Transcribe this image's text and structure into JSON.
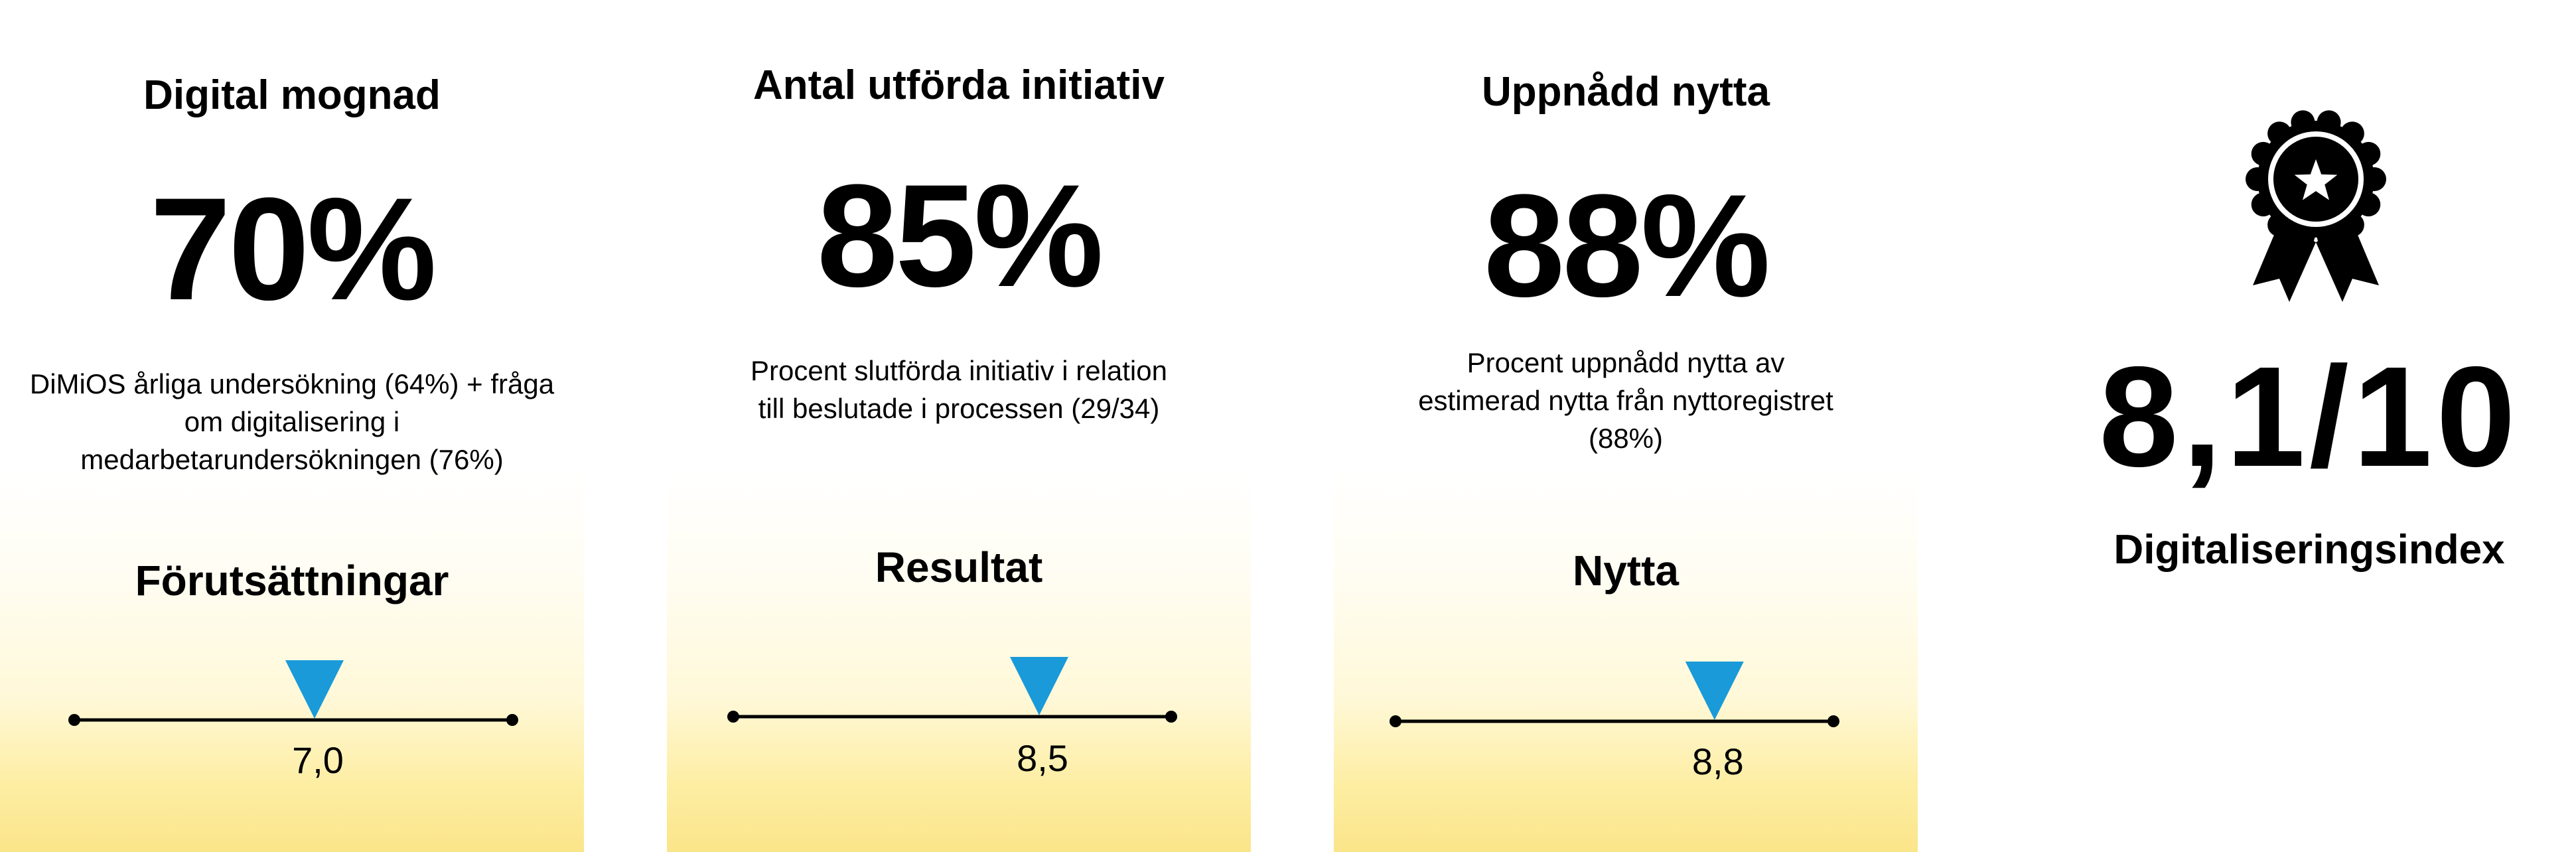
{
  "cards": [
    {
      "title": "Digital mognad",
      "value": "70%",
      "description": "DiMiOS årliga undersökning (64%) + fråga om digitalisering i medarbetarundersökningen (76%)",
      "label": "Förutsättningar",
      "scale_value": "7,0",
      "score": 7.0
    },
    {
      "title": "Antal utförda initiativ",
      "value": "85%",
      "description": "Procent slutförda initiativ i relation till beslutade i processen (29/34)",
      "label": "Resultat",
      "scale_value": "8,5",
      "score": 8.5
    },
    {
      "title": "Uppnådd nytta",
      "value": "88%",
      "description": "Procent uppnådd nytta av estimerad nytta från nyttoregistret (88%)",
      "label": "Nytta",
      "scale_value": "8,8",
      "score": 8.8
    }
  ],
  "scale_max": 10,
  "index": {
    "value": "8,1/10",
    "label": "Digitaliseringsindex",
    "icon": "award-ribbon-icon"
  },
  "colors": {
    "marker": "#1a9ad9",
    "text": "#000000",
    "gradient_bottom": "#fbe58a"
  }
}
